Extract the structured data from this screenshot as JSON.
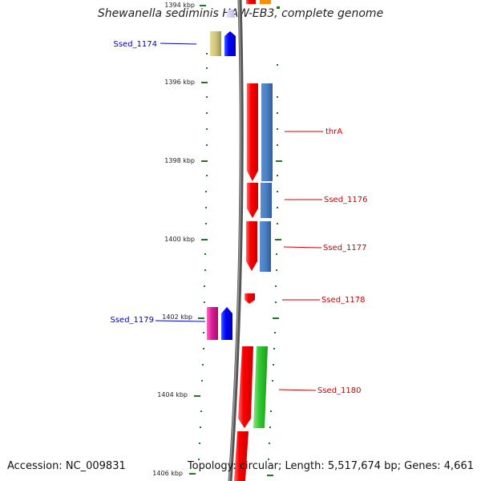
{
  "title": "Shewanella sediminis HAW-EB3, complete genome",
  "accession": "Accession: NC_009831",
  "summary": "Topology: circular; Length: 5,517,674 bp; Genes: 4,661",
  "ticks": [
    "1394 kbp",
    "1396 kbp",
    "1398 kbp",
    "1400 kbp",
    "1402 kbp",
    "1404 kbp",
    "1406 kbp"
  ],
  "genes": [
    {
      "name": "Ssed_1174",
      "strand": "reverse",
      "color": "#0000cc"
    },
    {
      "name": "thrA",
      "strand": "forward",
      "color": "#cc0000"
    },
    {
      "name": "Ssed_1176",
      "strand": "forward",
      "color": "#cc0000"
    },
    {
      "name": "Ssed_1177",
      "strand": "forward",
      "color": "#cc0000"
    },
    {
      "name": "Ssed_1178",
      "strand": "forward",
      "color": "#cc0000"
    },
    {
      "name": "Ssed_1179",
      "strand": "reverse",
      "color": "#0000cc"
    },
    {
      "name": "Ssed_1180",
      "strand": "forward",
      "color": "#cc0000"
    }
  ]
}
